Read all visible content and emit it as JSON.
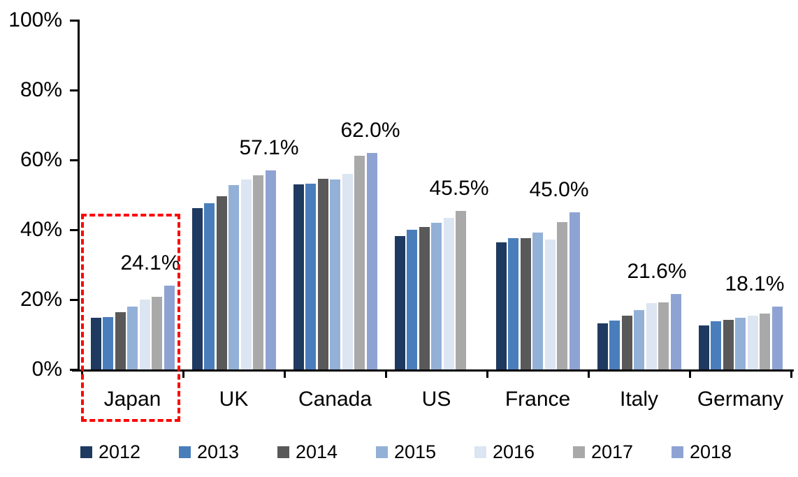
{
  "chart_data": {
    "type": "bar",
    "title": "",
    "xlabel": "",
    "ylabel": "",
    "ylim": [
      0,
      100
    ],
    "grid": false,
    "legend_position": "bottom",
    "y_ticks": [
      "0%",
      "20%",
      "40%",
      "60%",
      "80%",
      "100%"
    ],
    "categories": [
      "Japan",
      "UK",
      "Canada",
      "US",
      "France",
      "Italy",
      "Germany"
    ],
    "series": [
      {
        "name": "2012",
        "color": "#1F3A60",
        "values": [
          14.8,
          46.3,
          53.0,
          38.2,
          36.5,
          13.2,
          12.6
        ]
      },
      {
        "name": "2013",
        "color": "#4A7EBB",
        "values": [
          15.0,
          47.6,
          53.3,
          40.0,
          37.6,
          14.0,
          13.9
        ]
      },
      {
        "name": "2014",
        "color": "#595959",
        "values": [
          16.5,
          49.7,
          54.7,
          40.8,
          37.7,
          15.5,
          14.3
        ]
      },
      {
        "name": "2015",
        "color": "#93B1D7",
        "values": [
          18.1,
          52.9,
          54.5,
          42.0,
          39.2,
          17.0,
          14.8
        ]
      },
      {
        "name": "2016",
        "color": "#DCE5F2",
        "values": [
          20.1,
          54.5,
          56.0,
          43.4,
          37.3,
          19.1,
          15.4
        ]
      },
      {
        "name": "2017",
        "color": "#A9A9A9",
        "values": [
          20.9,
          55.6,
          61.2,
          45.5,
          42.3,
          19.3,
          16.0
        ]
      },
      {
        "name": "2018",
        "color": "#8FA3D3",
        "values": [
          24.1,
          57.1,
          62.0,
          null,
          45.0,
          21.6,
          18.1
        ]
      }
    ],
    "annotations": [
      {
        "category": "Japan",
        "text": "24.1%"
      },
      {
        "category": "UK",
        "text": "57.1%"
      },
      {
        "category": "Canada",
        "text": "62.0%"
      },
      {
        "category": "US",
        "text": "45.5%"
      },
      {
        "category": "France",
        "text": "45.0%"
      },
      {
        "category": "Italy",
        "text": "21.6%"
      },
      {
        "category": "Germany",
        "text": "18.1%"
      }
    ],
    "highlight": {
      "shape": "dashed-rectangle",
      "target": "Japan",
      "color": "#FF0000"
    }
  }
}
